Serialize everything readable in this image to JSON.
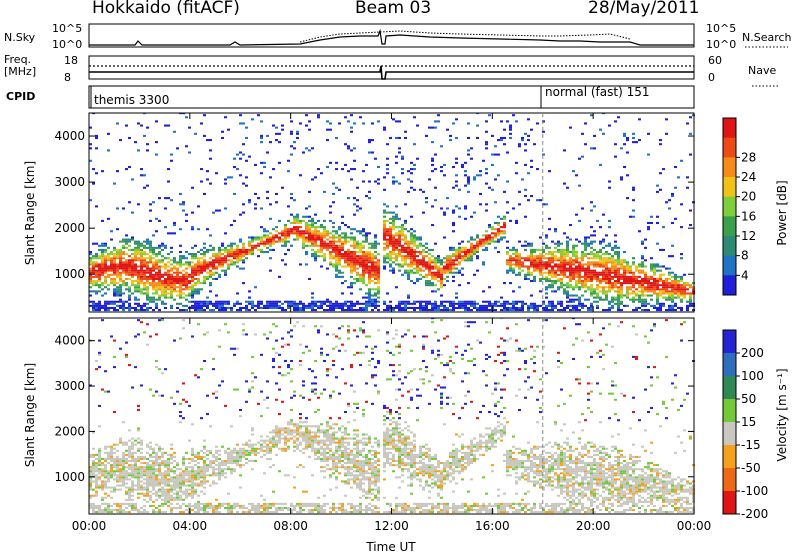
{
  "header": {
    "station": "Hokkaido (fitACF)",
    "beam": "Beam 03",
    "date": "28/May/2011"
  },
  "top_panels": {
    "nsky_label": "N.Sky",
    "nsky_ticks": [
      "10^5",
      "10^0"
    ],
    "nsearch_label": "N.Search",
    "nsearch_ticks": [
      "10^5",
      "10^0"
    ],
    "freq_label": "Freq.",
    "freq_unit": "[MHz]",
    "freq_ticks": [
      "18",
      "8"
    ],
    "nave_label": "Nave",
    "nave_ticks": [
      "60",
      "0"
    ],
    "cpid_label": "CPID",
    "cpid_segments": [
      {
        "label": "themis 3300",
        "start_hour": 0
      },
      {
        "label": "normal (fast) 151",
        "start_hour": 18
      }
    ]
  },
  "chart_data": [
    {
      "type": "heatmap",
      "name": "power",
      "ylabel": "Slant Range [km]",
      "xlabel": "",
      "x_ticks": [
        "00:00",
        "04:00",
        "08:00",
        "12:00",
        "16:00",
        "20:00",
        "00:00"
      ],
      "y_ticks": [
        1000,
        2000,
        3000,
        4000
      ],
      "ylim": [
        180,
        4500
      ],
      "colorbar_label": "Power [dB]",
      "colorbar_ticks": [
        4,
        8,
        12,
        16,
        20,
        24,
        28
      ],
      "colorscale": [
        "#1f1fd9",
        "#1f73c4",
        "#2e8a73",
        "#3ba04d",
        "#7ccf3a",
        "#f0c21a",
        "#f58c1a",
        "#ec4a17",
        "#e01515"
      ]
    },
    {
      "type": "heatmap",
      "name": "velocity",
      "ylabel": "Slant Range [km]",
      "xlabel": "Time UT",
      "x_ticks": [
        "00:00",
        "04:00",
        "08:00",
        "12:00",
        "16:00",
        "20:00",
        "00:00"
      ],
      "y_ticks": [
        1000,
        2000,
        3000,
        4000
      ],
      "ylim": [
        180,
        4500
      ],
      "colorbar_label": "Velocity [m s⁻¹]",
      "colorbar_ticks": [
        200,
        100,
        50,
        15,
        -15,
        -50,
        -100,
        -200
      ],
      "colorscale": [
        "#2424d4",
        "#2d6ebd",
        "#2e8a55",
        "#74c83a",
        "#c8c8c0",
        "#f5a11e",
        "#ec6a16",
        "#e01515"
      ]
    }
  ]
}
